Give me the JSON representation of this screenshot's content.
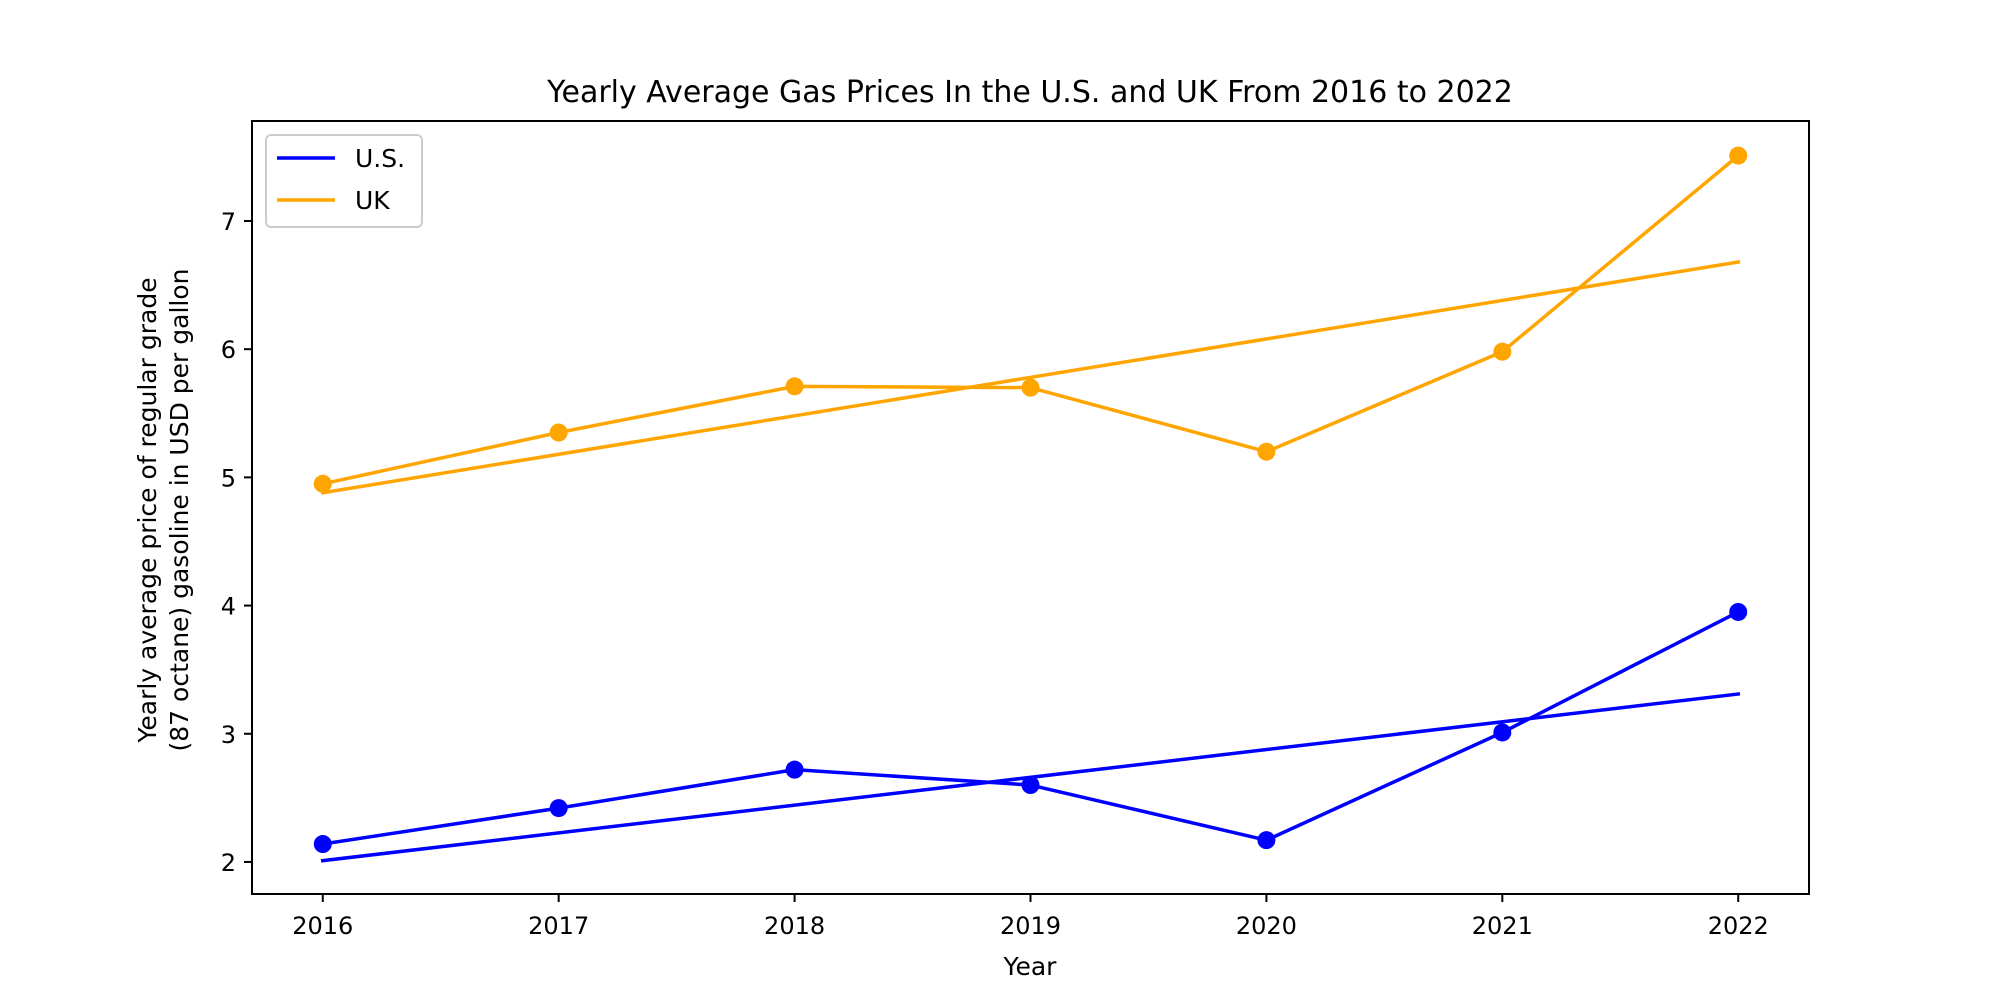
{
  "colors": {
    "us": "#0000ff",
    "uk": "#ffa500",
    "axis": "#000000",
    "legend_border": "#cccccc"
  },
  "chart_data": {
    "type": "line",
    "title": "Yearly Average Gas Prices In the U.S. and UK From 2016 to 2022",
    "xlabel": "Year",
    "ylabel_lines": [
      "Yearly average price of regular grade",
      "(87 octane) gasoline in USD per gallon"
    ],
    "x": [
      2016,
      2017,
      2018,
      2019,
      2020,
      2021,
      2022
    ],
    "x_ticks": [
      "2016",
      "2017",
      "2018",
      "2019",
      "2020",
      "2021",
      "2022"
    ],
    "y_ticks": [
      "2",
      "3",
      "4",
      "5",
      "6",
      "7"
    ],
    "xlim": [
      2015.7,
      2022.3
    ],
    "ylim": [
      1.75,
      7.78
    ],
    "grid": false,
    "legend_position": "top-left",
    "legend": [
      "U.S.",
      "UK"
    ],
    "series": [
      {
        "name": "U.S.",
        "values": [
          2.14,
          2.42,
          2.72,
          2.6,
          2.17,
          3.01,
          3.95
        ]
      },
      {
        "name": "UK",
        "values": [
          4.95,
          5.35,
          5.71,
          5.7,
          5.2,
          5.98,
          7.51
        ]
      }
    ],
    "trendlines": [
      {
        "series": "U.S.",
        "start": [
          2016,
          2.01
        ],
        "end": [
          2022,
          3.31
        ]
      },
      {
        "series": "UK",
        "start": [
          2016,
          4.88
        ],
        "end": [
          2022,
          6.68
        ]
      }
    ]
  }
}
